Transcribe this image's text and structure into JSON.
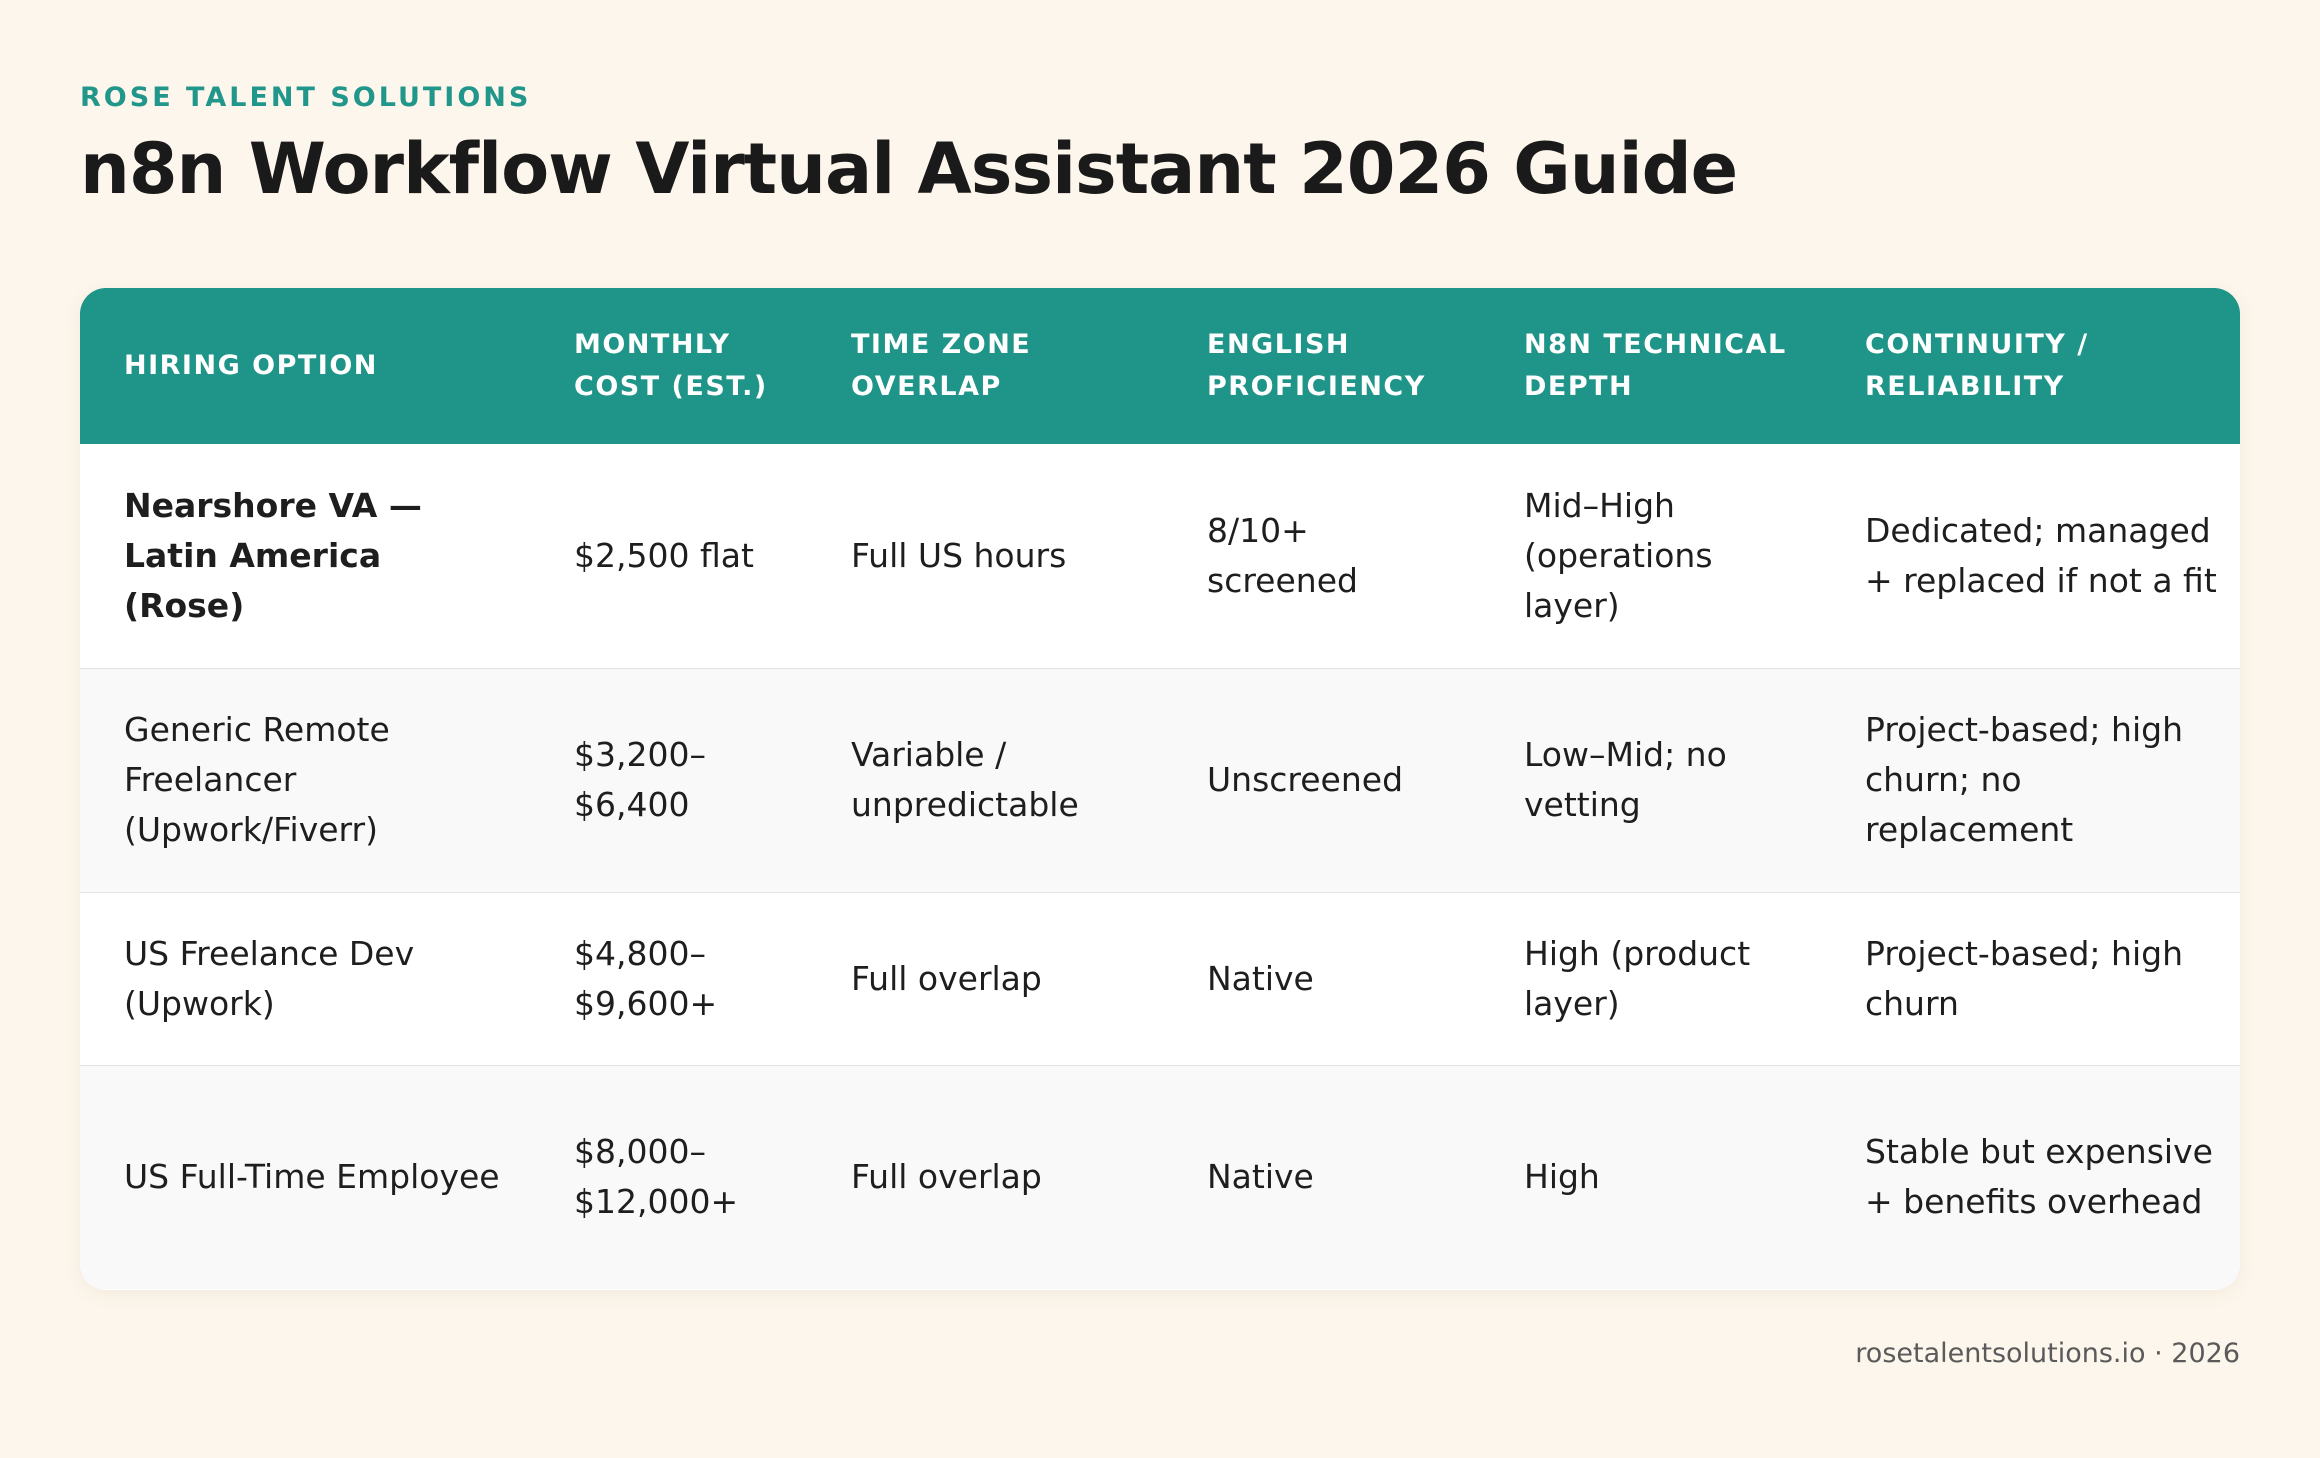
{
  "brand": "ROSE TALENT SOLUTIONS",
  "title": "n8n Workflow Virtual Assistant 2026 Guide",
  "table": {
    "headers": [
      "HIRING OPTION",
      "MONTHLY COST (EST.)",
      "TIME ZONE OVERLAP",
      "ENGLISH PROFICIENCY",
      "N8N TECHNICAL DEPTH",
      "CONTINUITY / RELIABILITY"
    ],
    "rows": [
      [
        "Nearshore VA — Latin America (Rose)",
        "$2,500 flat",
        "Full US hours",
        "8/10+ screened",
        "Mid–High (operations layer)",
        "Dedicated; managed + replaced if not a fit"
      ],
      [
        "Generic Remote Freelancer (Upwork/Fiverr)",
        "$3,200–$6,400",
        "Variable / unpredictable",
        "Unscreened",
        "Low–Mid; no vetting",
        "Project-based; high churn; no replacement"
      ],
      [
        "US Freelance Dev (Upwork)",
        "$4,800–$9,600+",
        "Full overlap",
        "Native",
        "High (product layer)",
        "Project-based; high churn"
      ],
      [
        "US Full-Time Employee",
        "$8,000–$12,000+",
        "Full overlap",
        "Native",
        "High",
        "Stable but expensive + benefits overhead"
      ]
    ]
  },
  "footer": "rosetalentsolutions.io · 2026",
  "colors": {
    "accent": "#1f9488",
    "background": "#fdf6ec"
  }
}
